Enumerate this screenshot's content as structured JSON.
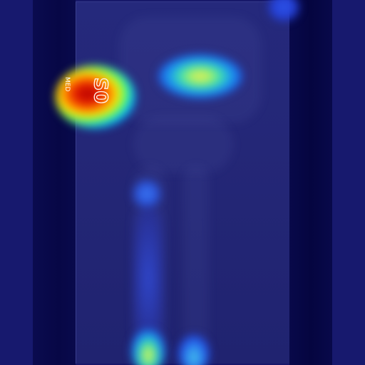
{
  "image": {
    "kind": "x-ray heatmap overlay",
    "colormap": [
      "#000080",
      "#0000ff",
      "#00ffff",
      "#ffff00",
      "#ff0000"
    ]
  },
  "marker": {
    "letters": "MED",
    "number": "S0"
  }
}
